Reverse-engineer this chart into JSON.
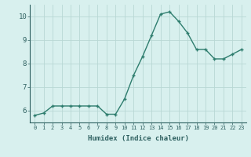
{
  "x": [
    0,
    1,
    2,
    3,
    4,
    5,
    6,
    7,
    8,
    9,
    10,
    11,
    12,
    13,
    14,
    15,
    16,
    17,
    18,
    19,
    20,
    21,
    22,
    23
  ],
  "y": [
    5.8,
    5.9,
    6.2,
    6.2,
    6.2,
    6.2,
    6.2,
    6.2,
    5.85,
    5.85,
    6.5,
    7.5,
    8.3,
    9.2,
    10.1,
    10.2,
    9.8,
    9.3,
    8.6,
    8.6,
    8.2,
    8.2,
    8.4,
    8.6
  ],
  "xlabel": "Humidex (Indice chaleur)",
  "line_color": "#2e7d6e",
  "bg_color": "#d8f0ee",
  "grid_color": "#b8d8d4",
  "tick_color": "#2e6060",
  "xlim_min": -0.5,
  "xlim_max": 23.5,
  "ylim_min": 5.5,
  "ylim_max": 10.5,
  "yticks": [
    6,
    7,
    8,
    9,
    10
  ],
  "xticks": [
    0,
    1,
    2,
    3,
    4,
    5,
    6,
    7,
    8,
    9,
    10,
    11,
    12,
    13,
    14,
    15,
    16,
    17,
    18,
    19,
    20,
    21,
    22,
    23
  ],
  "marker_size": 2.5,
  "line_width": 1.0,
  "x_fontsize": 5.0,
  "y_fontsize": 6.5,
  "xlabel_fontsize": 6.5
}
